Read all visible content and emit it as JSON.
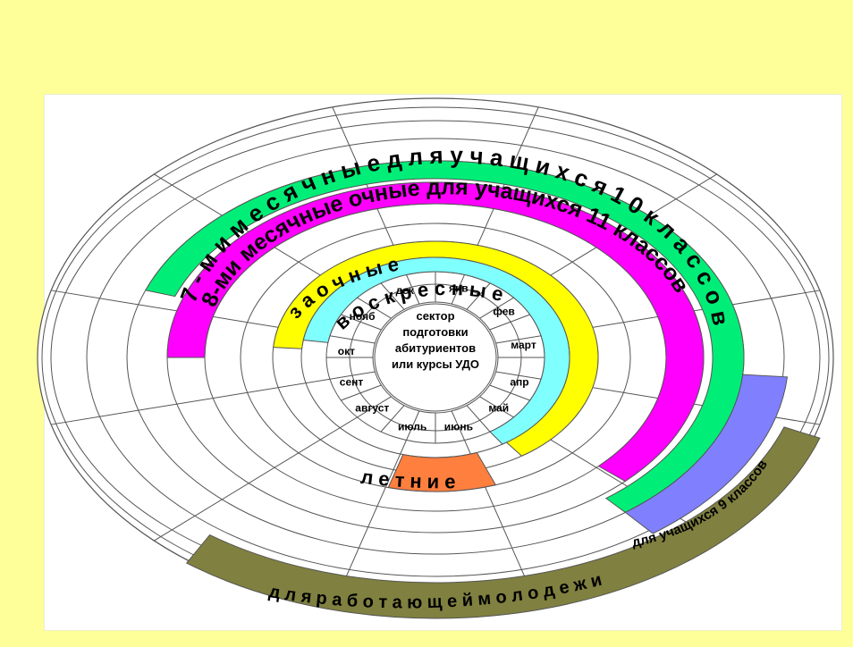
{
  "center": {
    "lines": [
      "сектор",
      "подготовки",
      "абитуриентов",
      "или курсы УДО"
    ]
  },
  "months": [
    "янв",
    "фев",
    "март",
    "апр",
    "май",
    "июнь",
    "июль",
    "август",
    "сент",
    "окт",
    "нояб",
    "дек"
  ],
  "rings": {
    "sunday": "в о с к р е с н ы е",
    "correspondence": "з а о ч н ы е",
    "eight_month": "8-ми месячные очные для учащихся 11 классов",
    "seven_month": "7 - м и  м е с я ч н ы е  д л я  у ч а щ и х с я  1 0  к л а с с о в",
    "ninth_grade": "для учащихся 9 классов",
    "working_youth": "д л я  р а б о т а ю щ е й  м о л о д е ж и",
    "summer": "л е т н и е"
  },
  "colors": {
    "page_background": "#ffff99",
    "panel_background": "#ffffff",
    "sunday_ring": "#80ffff",
    "correspondence_ring": "#ffff00",
    "eight_month_ring": "#ff00ff",
    "seven_month_ring": "#00ee77",
    "ninth_grade_ring": "#8080ff",
    "working_youth_ring": "#808040",
    "summer_band": "#ff7f3f",
    "lines": "#555555"
  }
}
